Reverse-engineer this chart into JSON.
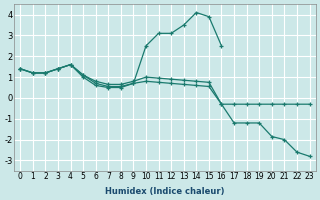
{
  "xlabel": "Humidex (Indice chaleur)",
  "bg_color": "#cce8e8",
  "grid_color": "#ffffff",
  "line_color": "#1a7a6e",
  "xlim": [
    -0.5,
    23.5
  ],
  "ylim": [
    -3.5,
    4.5
  ],
  "xticks": [
    0,
    1,
    2,
    3,
    4,
    5,
    6,
    7,
    8,
    9,
    10,
    11,
    12,
    13,
    14,
    15,
    16,
    17,
    18,
    19,
    20,
    21,
    22,
    23
  ],
  "yticks": [
    -3,
    -2,
    -1,
    0,
    1,
    2,
    3,
    4
  ],
  "series": [
    {
      "x": [
        0,
        1,
        2,
        3,
        4,
        5,
        6,
        7,
        8,
        9,
        10,
        11,
        12,
        13,
        14,
        15,
        16
      ],
      "y": [
        1.4,
        1.2,
        1.2,
        1.4,
        1.6,
        1.0,
        0.6,
        0.5,
        0.5,
        0.7,
        2.5,
        3.1,
        3.1,
        3.5,
        4.1,
        3.9,
        2.5
      ]
    },
    {
      "x": [
        0,
        1,
        2,
        3,
        4,
        5,
        6,
        7,
        8,
        9,
        10,
        11,
        12,
        13,
        14,
        15,
        16,
        17,
        18,
        19,
        20,
        21,
        22,
        23
      ],
      "y": [
        1.4,
        1.2,
        1.2,
        1.4,
        1.6,
        1.1,
        0.8,
        0.65,
        0.65,
        0.8,
        1.0,
        0.95,
        0.9,
        0.85,
        0.8,
        0.75,
        -0.3,
        -0.3,
        -0.3,
        -0.3,
        -0.3,
        -0.3,
        -0.3,
        -0.3
      ]
    },
    {
      "x": [
        0,
        1,
        2,
        3,
        4,
        5,
        6,
        7,
        8,
        9,
        10,
        11,
        12,
        13,
        14,
        15,
        16,
        17,
        18,
        19,
        20,
        21,
        22,
        23
      ],
      "y": [
        1.4,
        1.2,
        1.2,
        1.4,
        1.6,
        1.1,
        0.7,
        0.55,
        0.55,
        0.7,
        0.8,
        0.75,
        0.7,
        0.65,
        0.6,
        0.55,
        -0.3,
        -1.2,
        -1.2,
        -1.2,
        -1.85,
        -2.0,
        -2.6,
        -2.8
      ]
    }
  ]
}
